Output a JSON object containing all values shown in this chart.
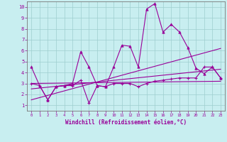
{
  "xlabel": "Windchill (Refroidissement éolien,°C)",
  "background_color": "#c8eef0",
  "line_color": "#990099",
  "xlim": [
    -0.5,
    23.5
  ],
  "ylim": [
    0.5,
    10.5
  ],
  "xticks": [
    0,
    1,
    2,
    3,
    4,
    5,
    6,
    7,
    8,
    9,
    10,
    11,
    12,
    13,
    14,
    15,
    16,
    17,
    18,
    19,
    20,
    21,
    22,
    23
  ],
  "yticks": [
    1,
    2,
    3,
    4,
    5,
    6,
    7,
    8,
    9,
    10
  ],
  "series": [
    {
      "x": [
        0,
        1,
        2,
        3,
        4,
        5,
        6,
        7,
        8,
        9,
        10,
        11,
        12,
        13,
        14,
        15,
        16,
        17,
        18,
        19,
        20,
        21,
        22,
        23
      ],
      "y": [
        4.5,
        2.8,
        1.5,
        2.7,
        2.8,
        3.0,
        5.9,
        4.5,
        2.8,
        2.7,
        4.5,
        6.5,
        6.4,
        4.5,
        9.8,
        10.3,
        7.7,
        8.4,
        7.7,
        6.3,
        4.4,
        3.9,
        4.5,
        3.5
      ],
      "marker": "^",
      "markersize": 2.5,
      "lw": 0.8
    },
    {
      "x": [
        0,
        1,
        2,
        3,
        4,
        5,
        6,
        7,
        8,
        9,
        10,
        11,
        12,
        13,
        14,
        15,
        16,
        17,
        18,
        19,
        20,
        21,
        22,
        23
      ],
      "y": [
        3.0,
        2.8,
        1.5,
        2.7,
        2.8,
        2.8,
        3.3,
        1.2,
        2.8,
        2.7,
        3.0,
        3.0,
        3.0,
        2.7,
        3.0,
        3.2,
        3.3,
        3.4,
        3.5,
        3.5,
        3.5,
        4.5,
        4.5,
        3.5
      ],
      "marker": "+",
      "markersize": 3.5,
      "lw": 0.8
    },
    {
      "x": [
        0,
        23
      ],
      "y": [
        1.5,
        6.2
      ],
      "marker": null,
      "lw": 0.8
    },
    {
      "x": [
        0,
        23
      ],
      "y": [
        2.5,
        4.3
      ],
      "marker": null,
      "lw": 0.8
    },
    {
      "x": [
        0,
        23
      ],
      "y": [
        3.0,
        3.2
      ],
      "marker": null,
      "lw": 0.8
    }
  ]
}
